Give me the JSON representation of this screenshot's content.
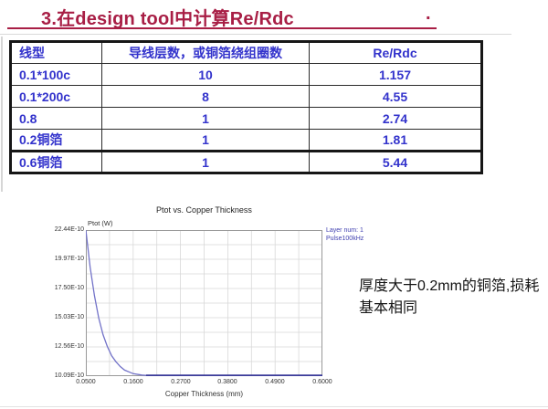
{
  "slide": {
    "title": "3.在design tool中计算Re/Rdc",
    "title_trailing_period": "."
  },
  "table": {
    "headers": [
      "线型",
      "导线层数，或铜箔绕组圈数",
      "Re/Rdc"
    ],
    "rows": [
      [
        "0.1*100c",
        "10",
        "1.157"
      ],
      [
        "0.1*200c",
        "8",
        "4.55"
      ],
      [
        "0.8",
        "1",
        "2.74"
      ],
      [
        "0.2铜箔",
        "1",
        "1.81"
      ],
      [
        "0.6铜箔",
        "1",
        "5.44"
      ]
    ]
  },
  "chart_data": {
    "type": "line",
    "title": "Ptot vs. Copper Thickness",
    "xlabel": "Copper Thickness (mm)",
    "ylabel": "Ptot (W)",
    "x_ticks": [
      "0.0500",
      "0.1600",
      "0.2700",
      "0.3800",
      "0.4900",
      "0.6000"
    ],
    "y_ticks": [
      "22.44E-10",
      "19.97E-10",
      "17.50E-10",
      "15.03E-10",
      "12.56E-10",
      "10.09E-10"
    ],
    "xlim_mm": [
      0.05,
      0.6
    ],
    "ylim_e10_w": [
      10.09,
      22.44
    ],
    "grid": true,
    "legend": [
      "Layer num: 1",
      "Pulse100kHz"
    ],
    "legend_position": "right-top",
    "series": [
      {
        "name": "Layer num: 1",
        "x_mm": [
          0.05,
          0.06,
          0.07,
          0.08,
          0.09,
          0.1,
          0.11,
          0.12,
          0.13,
          0.14,
          0.15,
          0.16,
          0.18,
          0.2,
          0.25,
          0.3,
          0.38,
          0.49,
          0.6
        ],
        "y_e10_w": [
          22.44,
          19.3,
          16.9,
          15.0,
          13.6,
          12.6,
          11.8,
          11.3,
          10.9,
          10.6,
          10.45,
          10.3,
          10.18,
          10.12,
          10.09,
          10.09,
          10.09,
          10.09,
          10.09
        ]
      }
    ],
    "flat_baseline": {
      "from_x_mm": 0.19,
      "to_x_mm": 0.6,
      "y_e10_w": 10.09
    }
  },
  "annotation": {
    "text": "厚度大于0.2mm的铜箔,损耗基本相同"
  },
  "colors": {
    "title_accent": "#a81e45",
    "table_text": "#3333cc",
    "curve": "#7272c8",
    "curve_baseline": "#3a3a99",
    "legend_text": "#4040b0",
    "gridline": "#d8d8d8",
    "plot_frame": "#999999"
  }
}
